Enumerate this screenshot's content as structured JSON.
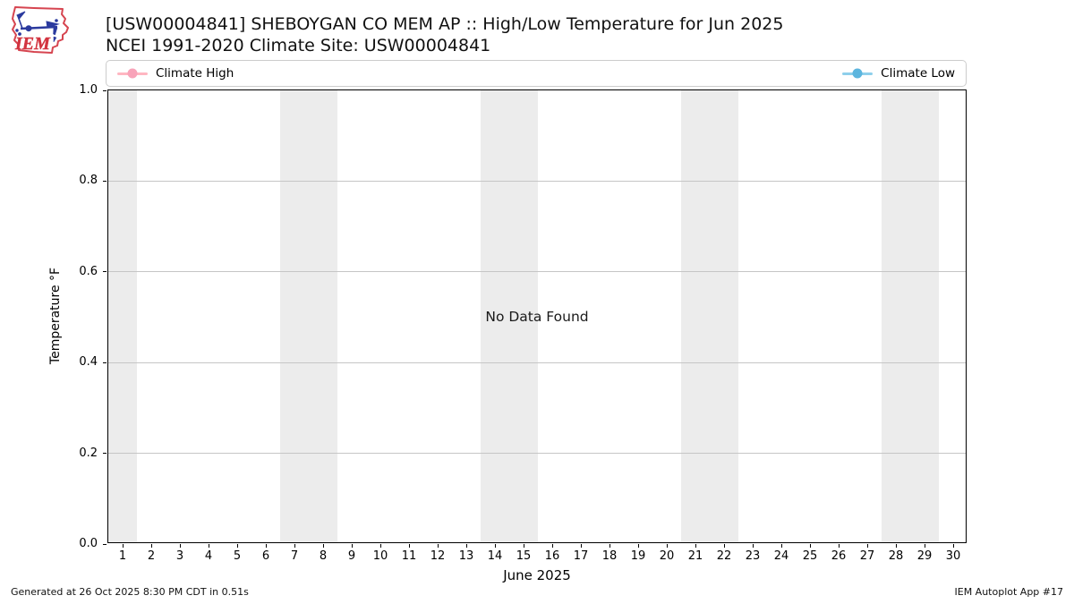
{
  "header": {
    "logo_text": "IEM",
    "title_line1": "[USW00004841] SHEBOYGAN CO MEM AP :: High/Low Temperature for Jun 2025",
    "title_line2": "NCEI 1991-2020 Climate Site: USW00004841"
  },
  "legend": {
    "high": {
      "label": "Climate High",
      "line_color": "#ffb6c1",
      "marker_color": "#f8a3b9"
    },
    "low": {
      "label": "Climate Low",
      "line_color": "#8ecfeb",
      "marker_color": "#5cb5de"
    }
  },
  "message": {
    "no_data": "No Data Found"
  },
  "footer": {
    "generated": "Generated at 26 Oct 2025 8:30 PM CDT in 0.51s",
    "app": "IEM Autoplot App #17"
  },
  "chart_data": {
    "type": "line",
    "title": "[USW00004841] SHEBOYGAN CO MEM AP :: High/Low Temperature for Jun 2025",
    "subtitle": "NCEI 1991-2020 Climate Site: USW00004841",
    "xlabel": "June 2025",
    "ylabel": "Temperature °F",
    "xlim": [
      0.5,
      30.5
    ],
    "ylim": [
      0.0,
      1.0
    ],
    "x_ticks": [
      1,
      2,
      3,
      4,
      5,
      6,
      7,
      8,
      9,
      10,
      11,
      12,
      13,
      14,
      15,
      16,
      17,
      18,
      19,
      20,
      21,
      22,
      23,
      24,
      25,
      26,
      27,
      28,
      29,
      30
    ],
    "y_ticks": [
      0.0,
      0.2,
      0.4,
      0.6,
      0.8,
      1.0
    ],
    "y_tick_labels": [
      "0.0",
      "0.2",
      "0.4",
      "0.6",
      "0.8",
      "1.0"
    ],
    "grid": "horizontal",
    "grid_color": "#c6c6c6",
    "weekend_bands": [
      [
        0.5,
        1.5
      ],
      [
        6.5,
        8.5
      ],
      [
        13.5,
        15.5
      ],
      [
        20.5,
        22.5
      ],
      [
        27.5,
        29.5
      ]
    ],
    "band_color": "#ececec",
    "series": [
      {
        "name": "Climate High",
        "color": "#ffb6c1",
        "x": [],
        "values": []
      },
      {
        "name": "Climate Low",
        "color": "#8ecfeb",
        "x": [],
        "values": []
      }
    ],
    "annotations": [
      {
        "text": "No Data Found",
        "x": 15.5,
        "y": 0.5
      }
    ],
    "legend_position": "top, outside plot, full-width box (high left, low right)"
  }
}
